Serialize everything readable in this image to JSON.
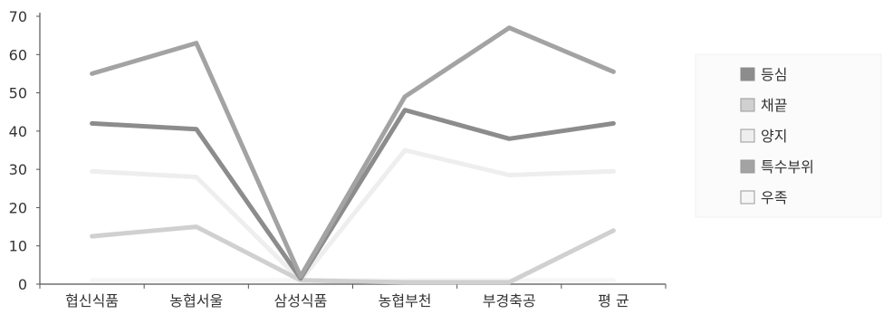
{
  "chart_data": {
    "type": "line",
    "title": "",
    "xlabel": "",
    "ylabel": "",
    "categories": [
      "협신식품",
      "농협서울",
      "삼성식품",
      "농협부천",
      "부경축공",
      "평 균"
    ],
    "ylim": [
      0,
      70
    ],
    "yticks": [
      0,
      10,
      20,
      30,
      40,
      50,
      60,
      70
    ],
    "grid": false,
    "legend_position": "right",
    "series": [
      {
        "name": "등심",
        "color": "#8c8c8c",
        "values": [
          42,
          40.5,
          1.5,
          45.5,
          38,
          42
        ]
      },
      {
        "name": "채끝",
        "color": "#d0d0d0",
        "values": [
          12.5,
          15,
          1,
          0.5,
          0.5,
          14
        ]
      },
      {
        "name": "양지",
        "color": "#eeeeee",
        "values": [
          29.5,
          28,
          1,
          35,
          28.5,
          29.5
        ]
      },
      {
        "name": "특수부위",
        "color": "#a3a3a3",
        "values": [
          55,
          63,
          2,
          49,
          67,
          55.5
        ]
      },
      {
        "name": "우족",
        "color": "#f6f6f6",
        "values": [
          1,
          1,
          1,
          1,
          1,
          1
        ]
      }
    ]
  }
}
